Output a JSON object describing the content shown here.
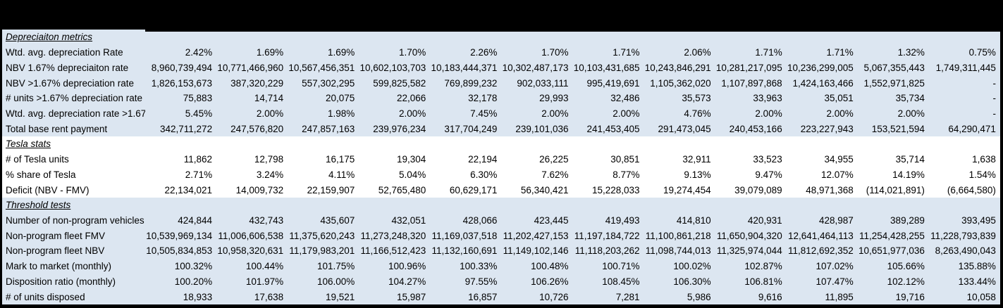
{
  "colors": {
    "frame": "#000000",
    "text": "#000000",
    "tone_blue": "#dce6f1",
    "tone_white": "#ffffff"
  },
  "table": {
    "num_data_columns": 12,
    "sections": [
      {
        "id": "depreciation-metrics",
        "title": "Depreciaiton metrics",
        "tone": "tone_blue",
        "rows": [
          {
            "label": "Wtd. avg. depreciation Rate",
            "values": [
              "2.42%",
              "1.69%",
              "1.69%",
              "1.70%",
              "2.26%",
              "1.70%",
              "1.71%",
              "2.06%",
              "1.71%",
              "1.71%",
              "1.32%",
              "0.75%"
            ]
          },
          {
            "label": "NBV 1.67% depreciaiton rate",
            "values": [
              "8,960,739,494",
              "10,771,466,960",
              "10,567,456,351",
              "10,602,103,703",
              "10,183,444,371",
              "10,302,487,173",
              "10,103,431,685",
              "10,243,846,291",
              "10,281,217,095",
              "10,236,299,005",
              "5,067,355,443",
              "1,749,311,445"
            ]
          },
          {
            "label": "NBV >1.67% depreciation rate",
            "values": [
              "1,826,153,673",
              "387,320,229",
              "557,302,295",
              "599,825,582",
              "769,899,232",
              "902,033,111",
              "995,419,691",
              "1,105,362,020",
              "1,107,897,868",
              "1,424,163,466",
              "1,552,971,825",
              "-"
            ]
          },
          {
            "label": "# units >1.67% depreciation rate",
            "values": [
              "75,883",
              "14,714",
              "20,075",
              "22,066",
              "32,178",
              "29,993",
              "32,486",
              "35,573",
              "33,963",
              "35,051",
              "35,734",
              "-"
            ]
          },
          {
            "label": "Wtd. avg. depreciation rate >1.67%",
            "values": [
              "5.45%",
              "2.00%",
              "1.98%",
              "2.00%",
              "7.45%",
              "2.00%",
              "2.00%",
              "4.76%",
              "2.00%",
              "2.00%",
              "2.00%",
              "-"
            ]
          },
          {
            "label": "Total base rent payment",
            "values": [
              "342,711,272",
              "247,576,820",
              "247,857,163",
              "239,976,234",
              "317,704,249",
              "239,101,036",
              "241,453,405",
              "291,473,045",
              "240,453,166",
              "223,227,943",
              "153,521,594",
              "64,290,471"
            ]
          }
        ]
      },
      {
        "id": "tesla-stats",
        "title": "Tesla stats",
        "tone": "tone_white",
        "rows": [
          {
            "label": "# of Tesla units",
            "values": [
              "11,862",
              "12,798",
              "16,175",
              "19,304",
              "22,194",
              "26,225",
              "30,851",
              "32,911",
              "33,523",
              "34,955",
              "35,714",
              "1,638"
            ]
          },
          {
            "label": "% share of Tesla",
            "values": [
              "2.71%",
              "3.24%",
              "4.11%",
              "5.04%",
              "6.30%",
              "7.62%",
              "8.77%",
              "9.13%",
              "9.47%",
              "12.07%",
              "14.19%",
              "1.54%"
            ]
          },
          {
            "label": "Deficit (NBV - FMV)",
            "values": [
              "22,134,021",
              "14,009,732",
              "22,159,907",
              "52,765,480",
              "60,629,171",
              "56,340,421",
              "15,228,033",
              "19,274,454",
              "39,079,089",
              "48,971,368",
              "(114,021,891)",
              "(6,664,580)"
            ]
          }
        ]
      },
      {
        "id": "threshold-tests",
        "title": "Threshold tests",
        "tone": "tone_blue",
        "rows": [
          {
            "label": "Number of non-program vehicles",
            "values": [
              "424,844",
              "432,743",
              "435,607",
              "432,051",
              "428,066",
              "423,445",
              "419,493",
              "414,810",
              "420,931",
              "428,987",
              "389,289",
              "393,495"
            ]
          },
          {
            "label": "Non-program fleet FMV",
            "values": [
              "10,539,969,134",
              "11,006,606,538",
              "11,375,620,243",
              "11,273,248,320",
              "11,169,037,518",
              "11,202,427,153",
              "11,197,184,722",
              "11,100,861,218",
              "11,650,904,320",
              "12,641,464,113",
              "11,254,428,255",
              "11,228,793,839"
            ]
          },
          {
            "label": "Non-program fleet NBV",
            "values": [
              "10,505,834,853",
              "10,958,320,631",
              "11,179,983,201",
              "11,166,512,423",
              "11,132,160,691",
              "11,149,102,146",
              "11,118,203,262",
              "11,098,744,013",
              "11,325,974,044",
              "11,812,692,352",
              "10,651,977,036",
              "8,263,490,043"
            ]
          },
          {
            "label": "Mark to market (monthly)",
            "values": [
              "100.32%",
              "100.44%",
              "101.75%",
              "100.96%",
              "100.33%",
              "100.48%",
              "100.71%",
              "100.02%",
              "102.87%",
              "107.02%",
              "105.66%",
              "135.88%"
            ]
          },
          {
            "label": "Disposition ratio (monthly)",
            "values": [
              "100.20%",
              "101.97%",
              "106.00%",
              "104.27%",
              "97.55%",
              "106.26%",
              "108.45%",
              "106.30%",
              "106.81%",
              "107.47%",
              "102.12%",
              "133.44%"
            ]
          },
          {
            "label": "# of units disposed",
            "values": [
              "18,933",
              "17,638",
              "19,521",
              "15,987",
              "16,857",
              "10,726",
              "7,281",
              "5,986",
              "9,616",
              "11,895",
              "19,716",
              "10,058"
            ]
          }
        ]
      }
    ]
  }
}
